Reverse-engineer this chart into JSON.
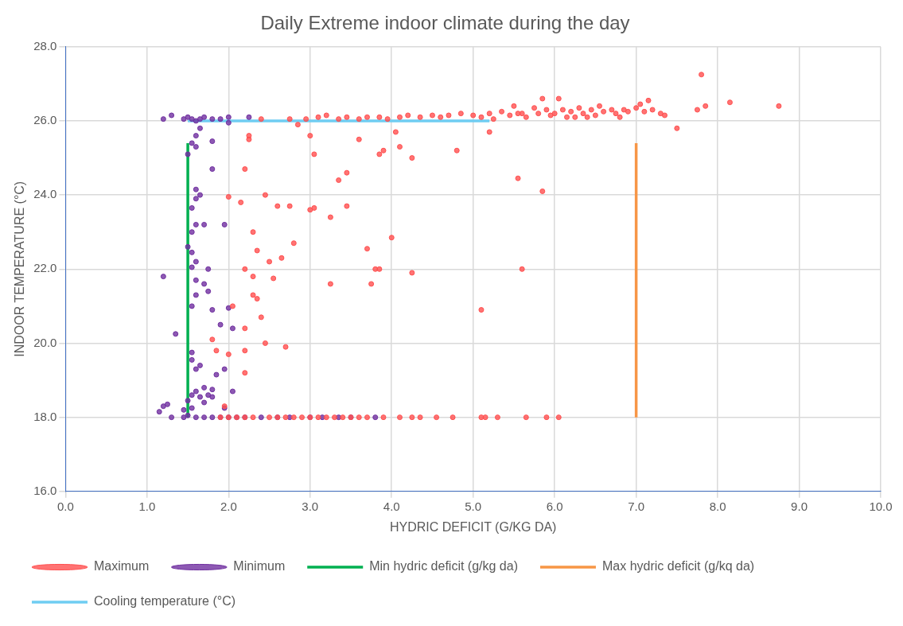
{
  "chart_data": {
    "type": "scatter",
    "title": "Daily Extreme indoor climate during the day",
    "xlabel": "HYDRIC DEFICIT (G/KG DA)",
    "ylabel": "INDOOR TEMPERATURE (°C)",
    "xlim": [
      0,
      10
    ],
    "xticks": [
      {
        "value": 0,
        "label": "0.0"
      },
      {
        "value": 1,
        "label": "1.0"
      },
      {
        "value": 2,
        "label": "2.0"
      },
      {
        "value": 3,
        "label": "3.0"
      },
      {
        "value": 4,
        "label": "4.0"
      },
      {
        "value": 5,
        "label": "5.0"
      },
      {
        "value": 6,
        "label": "6.0"
      },
      {
        "value": 7,
        "label": "7.0"
      },
      {
        "value": 8,
        "label": "8.0"
      },
      {
        "value": 9,
        "label": "9.0"
      },
      {
        "value": 10,
        "label": "10.0"
      }
    ],
    "ylim": [
      16,
      28
    ],
    "yticks": [
      {
        "value": 16,
        "label": "16.0"
      },
      {
        "value": 18,
        "label": "18.0"
      },
      {
        "value": 20,
        "label": "20.0"
      },
      {
        "value": 22,
        "label": "22.0"
      },
      {
        "value": 24,
        "label": "24.0"
      },
      {
        "value": 26,
        "label": "26.0"
      },
      {
        "value": 28,
        "label": "28.0"
      }
    ],
    "grid": true,
    "legend": "bottom",
    "marker": "circle",
    "series": [
      {
        "name": "Maximum",
        "type": "scatter",
        "color": "#ff5050",
        "x": [
          2.4,
          2.75,
          2.95,
          3.1,
          3.2,
          3.35,
          3.45,
          3.6,
          3.7,
          3.85,
          3.95,
          4.1,
          4.2,
          4.35,
          4.5,
          4.6,
          4.7,
          4.85,
          5.0,
          5.1,
          5.2,
          5.25,
          5.35,
          5.45,
          5.5,
          5.6,
          5.65,
          5.75,
          5.8,
          5.85,
          5.9,
          6.0,
          6.05,
          6.1,
          6.15,
          6.2,
          6.3,
          6.35,
          6.45,
          6.5,
          6.55,
          6.6,
          6.7,
          6.75,
          6.85,
          6.9,
          7.0,
          7.05,
          7.1,
          7.15,
          7.2,
          7.3,
          7.35,
          6.4,
          5.95,
          5.55,
          6.25,
          6.8,
          7.8,
          8.15,
          8.75,
          7.5,
          7.85,
          7.75,
          5.2,
          5.55,
          5.85,
          5.6,
          5.1,
          4.8,
          4.25,
          4.1,
          4.05,
          3.85,
          3.9,
          3.6,
          3.35,
          3.45,
          3.05,
          3.0,
          2.85,
          2.25,
          2.25,
          2.2,
          4.0,
          3.7,
          3.8,
          3.85,
          3.75,
          4.25,
          3.25,
          2.8,
          2.6,
          2.75,
          2.45,
          2.15,
          2.0,
          3.0,
          3.05,
          3.25,
          3.45,
          2.3,
          2.35,
          2.65,
          2.2,
          2.3,
          2.5,
          2.55,
          2.3,
          2.35,
          2.05,
          2.4,
          2.2,
          2.45,
          2.7,
          2.2,
          2.0,
          1.85,
          2.2,
          1.95,
          1.8,
          1.9,
          2.0,
          2.1,
          2.2,
          2.3,
          2.5,
          2.6,
          2.7,
          2.8,
          2.9,
          3.0,
          3.1,
          3.2,
          3.3,
          3.4,
          3.5,
          3.6,
          3.7,
          3.9,
          4.1,
          4.25,
          4.35,
          4.55,
          4.75,
          5.1,
          5.15,
          5.65,
          5.9,
          6.05,
          5.3
        ],
        "values": [
          26.05,
          26.05,
          26.05,
          26.1,
          26.15,
          26.05,
          26.1,
          26.05,
          26.1,
          26.1,
          26.05,
          26.1,
          26.15,
          26.1,
          26.15,
          26.1,
          26.15,
          26.2,
          26.15,
          26.1,
          26.2,
          26.05,
          26.25,
          26.15,
          26.4,
          26.2,
          26.1,
          26.35,
          26.2,
          26.6,
          26.3,
          26.2,
          26.6,
          26.3,
          26.1,
          26.25,
          26.35,
          26.2,
          26.3,
          26.15,
          26.4,
          26.25,
          26.3,
          26.2,
          26.3,
          26.25,
          26.35,
          26.45,
          26.25,
          26.55,
          26.3,
          26.2,
          26.15,
          26.1,
          26.15,
          26.2,
          26.1,
          26.1,
          27.25,
          26.5,
          26.4,
          25.8,
          26.4,
          26.3,
          25.7,
          24.45,
          24.1,
          22.0,
          20.9,
          25.2,
          25.0,
          25.3,
          25.7,
          25.1,
          25.2,
          25.5,
          24.4,
          24.6,
          25.1,
          25.6,
          25.9,
          25.6,
          25.5,
          24.7,
          22.85,
          22.55,
          22.0,
          22.0,
          21.6,
          21.9,
          21.6,
          22.7,
          23.7,
          23.7,
          24.0,
          23.8,
          23.95,
          23.6,
          23.65,
          23.4,
          23.7,
          23.0,
          22.5,
          22.3,
          22.0,
          21.8,
          22.2,
          21.75,
          21.3,
          21.2,
          21.0,
          20.7,
          20.4,
          20.0,
          19.9,
          19.8,
          19.7,
          19.8,
          19.2,
          18.3,
          20.1,
          18.0,
          18.0,
          18.0,
          18.0,
          18.0,
          18.0,
          18.0,
          18.0,
          18.0,
          18.0,
          18.0,
          18.0,
          18.0,
          18.0,
          18.0,
          18.0,
          18.0,
          18.0,
          18.0,
          18.0,
          18.0,
          18.0,
          18.0,
          18.0,
          18.0,
          18.0,
          18.0,
          18.0,
          18.0,
          18.0
        ]
      },
      {
        "name": "Minimum",
        "type": "scatter",
        "color": "#7030a0",
        "x": [
          1.2,
          1.3,
          1.45,
          1.5,
          1.55,
          1.6,
          1.65,
          1.7,
          1.8,
          1.9,
          2.0,
          2.0,
          2.25,
          1.65,
          1.6,
          1.55,
          1.6,
          1.5,
          1.8,
          1.8,
          1.6,
          1.65,
          1.6,
          1.55,
          1.7,
          1.6,
          1.95,
          1.55,
          1.5,
          1.55,
          1.6,
          1.55,
          1.75,
          1.2,
          1.6,
          1.7,
          1.75,
          1.6,
          1.55,
          1.8,
          2.0,
          2.05,
          1.9,
          1.35,
          1.55,
          1.55,
          1.6,
          1.65,
          1.95,
          1.85,
          1.7,
          1.6,
          1.75,
          1.8,
          1.65,
          1.5,
          1.2,
          1.25,
          1.15,
          1.45,
          1.55,
          1.95,
          1.55,
          1.7,
          1.8,
          2.05,
          1.3,
          1.45,
          1.5,
          1.6,
          1.7,
          1.8,
          1.9,
          2.0,
          2.1,
          2.2,
          2.4,
          2.6,
          2.75,
          3.0,
          3.15,
          3.35,
          3.5,
          3.8
        ],
        "values": [
          26.05,
          26.15,
          26.05,
          26.1,
          26.05,
          26.0,
          26.05,
          26.1,
          26.05,
          26.05,
          26.1,
          25.95,
          26.1,
          25.8,
          25.6,
          25.4,
          25.3,
          25.1,
          25.45,
          24.7,
          24.15,
          24.0,
          23.9,
          23.65,
          23.2,
          23.2,
          23.2,
          23.0,
          22.6,
          22.45,
          22.2,
          22.05,
          22.0,
          21.8,
          21.7,
          21.6,
          21.4,
          21.3,
          21.0,
          20.9,
          20.95,
          20.4,
          20.5,
          20.25,
          19.75,
          19.55,
          19.3,
          19.4,
          19.3,
          19.15,
          18.8,
          18.7,
          18.6,
          18.55,
          18.55,
          18.45,
          18.3,
          18.35,
          18.15,
          18.2,
          18.25,
          18.25,
          18.6,
          18.4,
          18.75,
          18.7,
          18.0,
          18.0,
          18.05,
          18.0,
          18.0,
          18.0,
          18.0,
          18.0,
          18.0,
          18.0,
          18.0,
          18.0,
          18.0,
          18.0,
          18.0,
          18.0,
          18.0,
          18.0
        ]
      },
      {
        "name": "Min hydric deficit (g/kg da)",
        "type": "line",
        "color": "#00b050",
        "marker": "none",
        "x": [
          1.5,
          1.5
        ],
        "values": [
          18.0,
          25.4
        ]
      },
      {
        "name": "Max hydric deficit (g/kq da)",
        "type": "line",
        "color": "#f79646",
        "marker": "none",
        "x": [
          7.0,
          7.0
        ],
        "values": [
          18.0,
          25.4
        ]
      },
      {
        "name": "Cooling temperature (°C)",
        "type": "line",
        "color": "#6fcdf2",
        "marker": "none",
        "x": [
          1.5,
          5.2
        ],
        "values": [
          26.0,
          26.0
        ]
      }
    ]
  }
}
